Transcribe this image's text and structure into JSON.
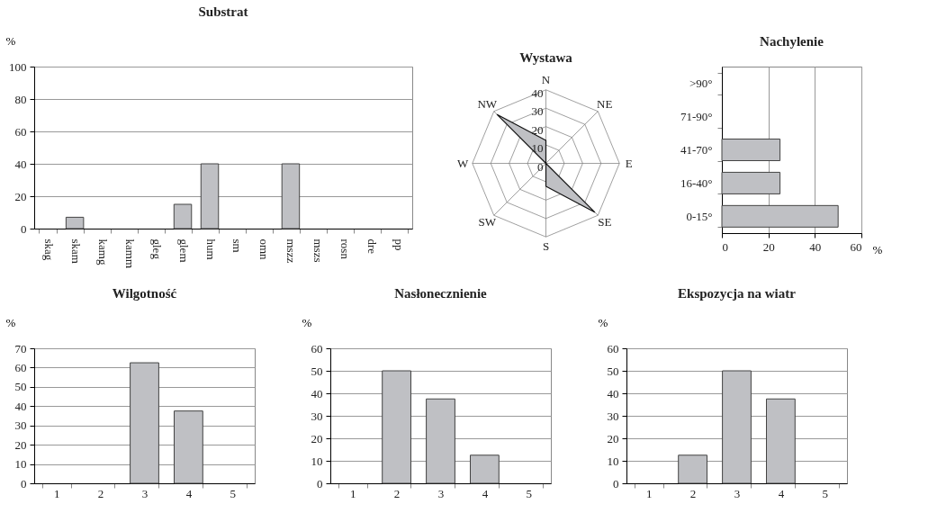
{
  "chart_data": [
    {
      "type": "bar",
      "title": "Substrat",
      "ylabel": "%",
      "categories": [
        "skag",
        "skam",
        "kamg",
        "kamm",
        "gleg",
        "glem",
        "hum",
        "sm",
        "omn",
        "mszz",
        "mszs",
        "rosn",
        "dre",
        "pp"
      ],
      "values": [
        0,
        7,
        0,
        0,
        0,
        15,
        40,
        0,
        0,
        40,
        0,
        0,
        0,
        0
      ],
      "color": "#bfc0c4",
      "ylim": [
        0,
        100
      ],
      "yticks": [
        0,
        20,
        40,
        60,
        80,
        100
      ],
      "grid": "y"
    },
    {
      "type": "radar",
      "title": "Wystawa",
      "categories": [
        "N",
        "NE",
        "E",
        "SE",
        "S",
        "SW",
        "W",
        "NW"
      ],
      "values": [
        12.5,
        0,
        0,
        37.5,
        12.5,
        0,
        0,
        37.5
      ],
      "color": "#bfc0c4",
      "ylim": [
        0,
        40
      ],
      "yticks": [
        0,
        10,
        20,
        30,
        40
      ],
      "grid": true
    },
    {
      "type": "bar",
      "title": "Nachylenie",
      "xlabel": "%",
      "orientation": "horizontal",
      "categories": [
        ">90°",
        "71-90°",
        "41-70°",
        "16-40°",
        "0-15°"
      ],
      "values": [
        0,
        0,
        25,
        25,
        50
      ],
      "color": "#bfc0c4",
      "xlim": [
        0,
        60
      ],
      "xticks": [
        0,
        20,
        40,
        60
      ],
      "grid": "x"
    },
    {
      "type": "bar",
      "title": "Wilgotność",
      "ylabel": "%",
      "categories": [
        "1",
        "2",
        "3",
        "4",
        "5"
      ],
      "values": [
        0,
        0,
        62.5,
        37.5,
        0
      ],
      "color": "#bfc0c4",
      "ylim": [
        0,
        70
      ],
      "yticks": [
        0,
        10,
        20,
        30,
        40,
        50,
        60,
        70
      ],
      "grid": "y"
    },
    {
      "type": "bar",
      "title": "Nasłonecznienie",
      "ylabel": "%",
      "categories": [
        "1",
        "2",
        "3",
        "4",
        "5"
      ],
      "values": [
        0,
        50,
        37.5,
        12.5,
        0
      ],
      "color": "#bfc0c4",
      "ylim": [
        0,
        60
      ],
      "yticks": [
        0,
        10,
        20,
        30,
        40,
        50,
        60
      ],
      "grid": "y"
    },
    {
      "type": "bar",
      "title": "Ekspozycja na wiatr",
      "ylabel": "%",
      "categories": [
        "1",
        "2",
        "3",
        "4",
        "5"
      ],
      "values": [
        0,
        12.5,
        50,
        37.5,
        0
      ],
      "color": "#bfc0c4",
      "ylim": [
        0,
        60
      ],
      "yticks": [
        0,
        10,
        20,
        30,
        40,
        50,
        60
      ],
      "grid": "y"
    }
  ]
}
